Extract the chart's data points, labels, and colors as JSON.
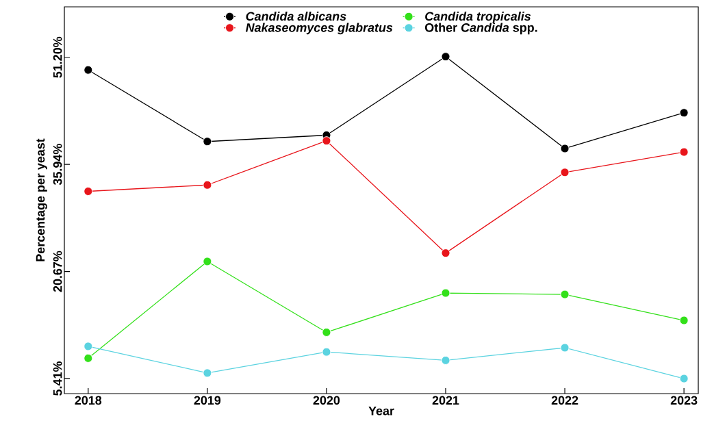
{
  "chart_data": {
    "type": "line",
    "xlabel": "Year",
    "ylabel": "Percentage per yeast",
    "x": [
      2018,
      2019,
      2020,
      2021,
      2022,
      2023
    ],
    "series": [
      {
        "name": "*Candida albicans*",
        "color": "#000000",
        "values": [
          49.4,
          39.2,
          40.1,
          51.3,
          38.2,
          43.3
        ]
      },
      {
        "name": "*Nakaseomyces glabratus*",
        "color": "#e8151b",
        "values": [
          32.1,
          33.0,
          39.3,
          23.3,
          34.8,
          37.7
        ]
      },
      {
        "name": "*Candida tropicalis*",
        "color": "#33e01a",
        "values": [
          8.3,
          22.1,
          12.0,
          17.6,
          17.4,
          13.7
        ]
      },
      {
        "name": "Other *Candida* spp.",
        "color": "#5bd3e0",
        "values": [
          10.0,
          6.2,
          9.2,
          8.0,
          9.8,
          5.4
        ]
      }
    ],
    "xlim": [
      2017.8,
      2023.12
    ],
    "ylim": [
      3.26,
      58.4
    ],
    "xticks": [
      2018,
      2019,
      2020,
      2021,
      2022,
      2023
    ],
    "yticks": [
      {
        "value": 5.41,
        "label": "5.41%"
      },
      {
        "value": 20.67,
        "label": "20.67%"
      },
      {
        "value": 35.94,
        "label": "35.94%"
      },
      {
        "value": 51.2,
        "label": "51.20%"
      }
    ],
    "grid": false,
    "legend": "top",
    "marker": "circle",
    "line_style": "solid"
  }
}
